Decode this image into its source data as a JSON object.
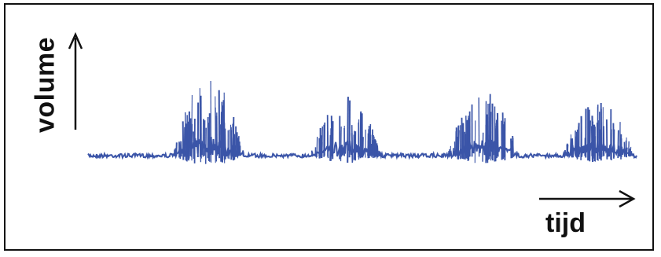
{
  "labels": {
    "y_axis": "volume",
    "x_axis": "tijd"
  },
  "colors": {
    "signal": "#3b55a8",
    "arrows": "#111111",
    "border": "#111111"
  },
  "chart_data": {
    "type": "line",
    "description_of_series": "",
    "bursts": [
      {
        "center": 0.22,
        "peak": 1.0
      },
      {
        "center": 0.47,
        "peak": 0.78
      },
      {
        "center": 0.72,
        "peak": 0.82
      },
      {
        "center": 0.93,
        "peak": 0.7
      }
    ],
    "baseline": 0.0
  }
}
